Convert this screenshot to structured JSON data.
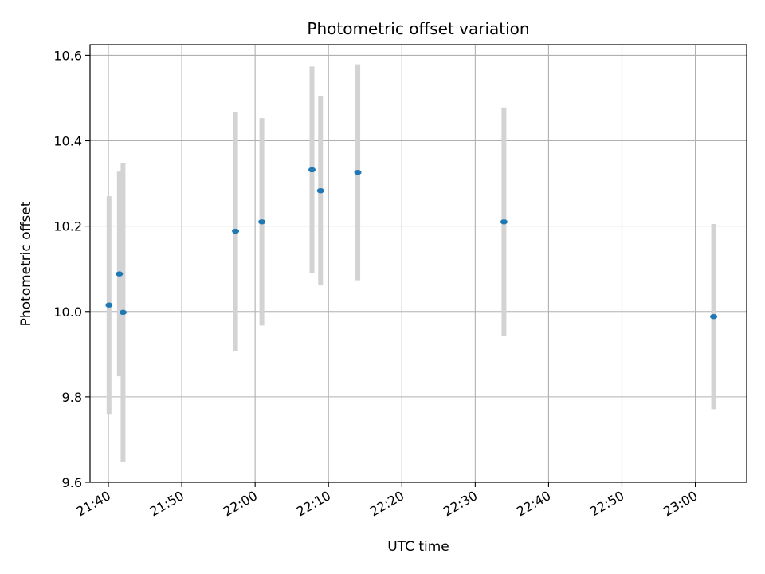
{
  "chart_data": {
    "type": "scatter",
    "title": "Photometric offset variation",
    "xlabel": "UTC time",
    "ylabel": "Photometric offset",
    "ylim": [
      9.6,
      10.625
    ],
    "xlim": [
      "21:37:30",
      "23:07:00"
    ],
    "grid": true,
    "colors": {
      "marker": "#1f77b4",
      "errorbar": "#d3d3d3",
      "grid": "#b0b0b0"
    },
    "yticks": [
      "9.6",
      "9.8",
      "10.0",
      "10.2",
      "10.4",
      "10.6"
    ],
    "xticks": [
      "21:40",
      "21:50",
      "22:00",
      "22:10",
      "22:20",
      "22:30",
      "22:40",
      "22:50",
      "23:00"
    ],
    "series": [
      {
        "points": [
          {
            "x": "21:40:05",
            "y": 10.015,
            "err": 0.255
          },
          {
            "x": "21:41:30",
            "y": 10.088,
            "err": 0.24
          },
          {
            "x": "21:42:00",
            "y": 9.998,
            "err": 0.35
          },
          {
            "x": "21:57:20",
            "y": 10.188,
            "err": 0.28
          },
          {
            "x": "22:00:55",
            "y": 10.21,
            "err": 0.243
          },
          {
            "x": "22:07:45",
            "y": 10.332,
            "err": 0.242
          },
          {
            "x": "22:08:55",
            "y": 10.283,
            "err": 0.222
          },
          {
            "x": "22:14:00",
            "y": 10.326,
            "err": 0.253
          },
          {
            "x": "22:33:55",
            "y": 10.21,
            "err": 0.268
          },
          {
            "x": "23:02:30",
            "y": 9.988,
            "err": 0.217
          }
        ]
      }
    ]
  }
}
